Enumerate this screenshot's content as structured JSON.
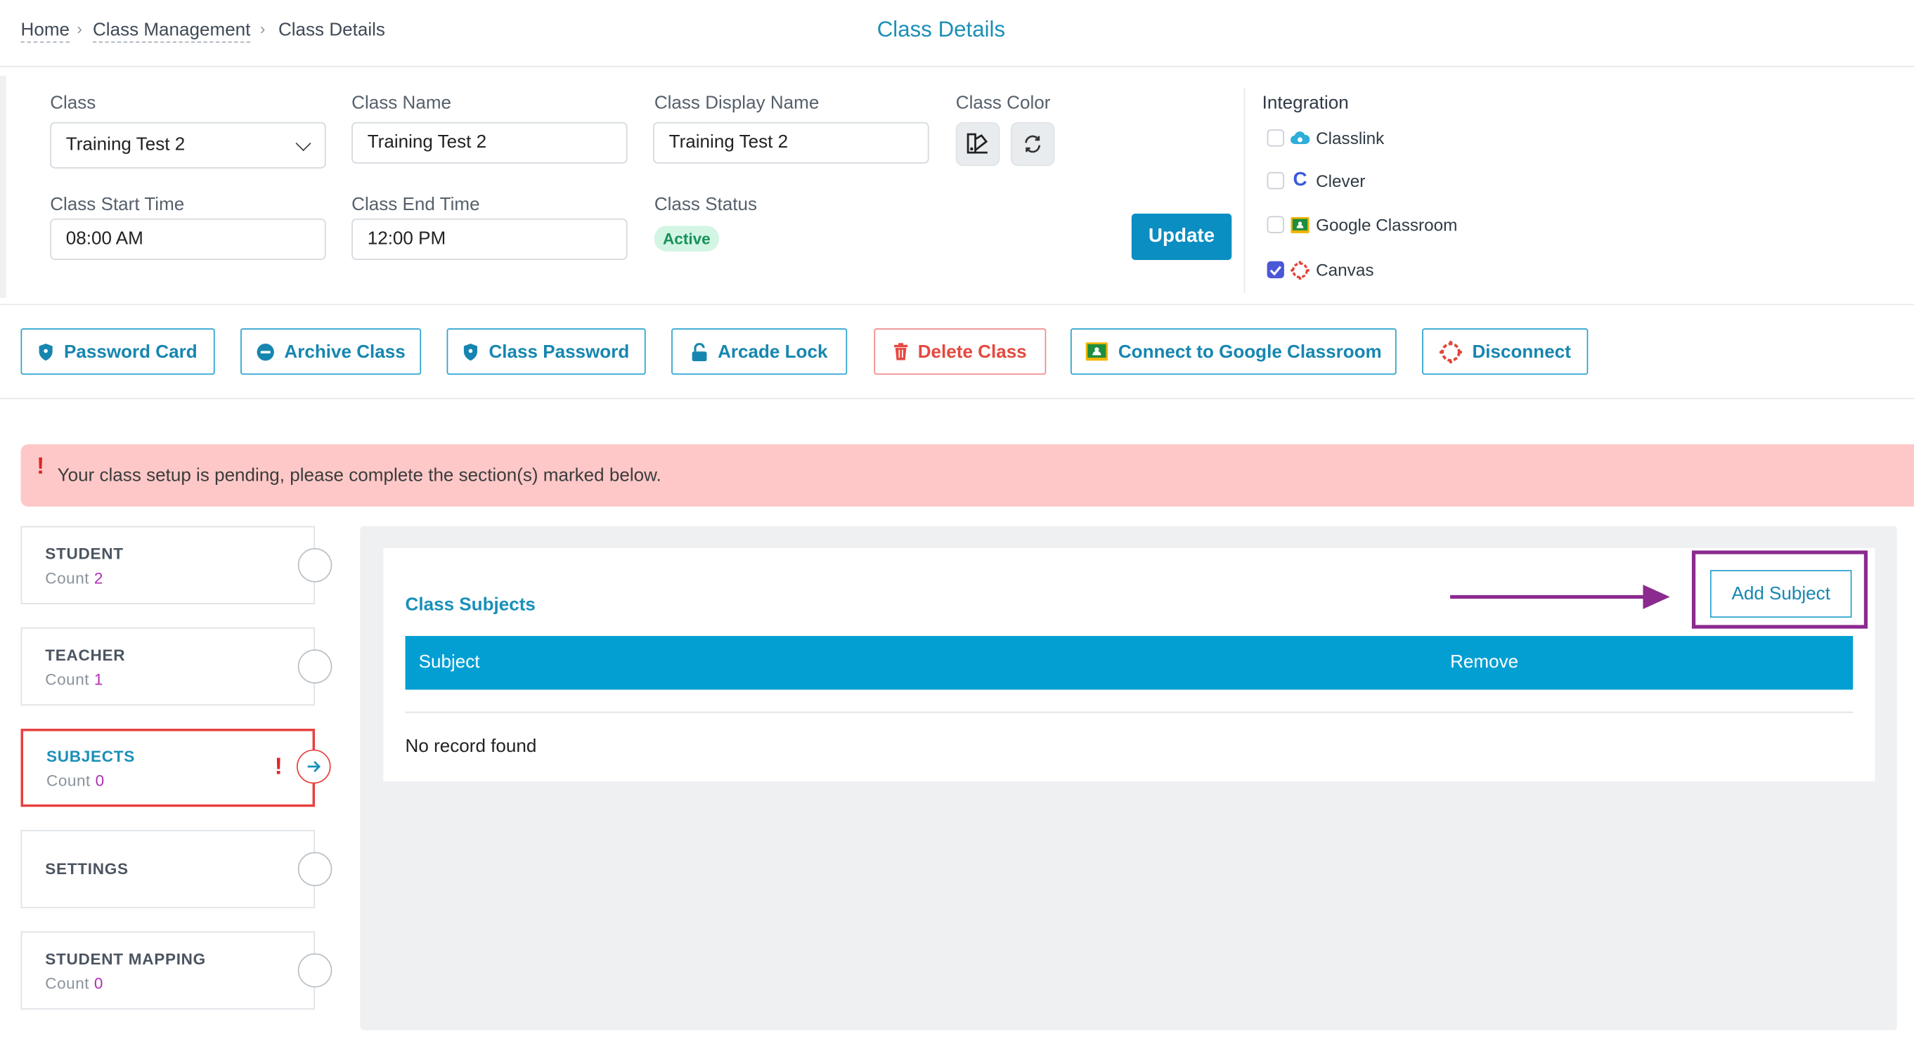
{
  "breadcrumb": {
    "home": "Home",
    "class_management": "Class Management",
    "current": "Class Details"
  },
  "page_title": "Class Details",
  "form": {
    "class_label": "Class",
    "class_value": "Training Test 2",
    "class_name_label": "Class Name",
    "class_name_value": "Training Test 2",
    "display_name_label": "Class Display Name",
    "display_name_value": "Training Test 2",
    "color_label": "Class Color",
    "start_label": "Class Start Time",
    "start_value": "08:00 AM",
    "end_label": "Class End Time",
    "end_value": "12:00 PM",
    "status_label": "Class Status",
    "status_value": "Active",
    "update_label": "Update"
  },
  "integration": {
    "title": "Integration",
    "items": [
      {
        "label": "Classlink",
        "checked": false,
        "icon": "classlink-icon"
      },
      {
        "label": "Clever",
        "checked": false,
        "icon": "clever-icon"
      },
      {
        "label": "Google Classroom",
        "checked": false,
        "icon": "google-classroom-icon"
      },
      {
        "label": "Canvas",
        "checked": true,
        "icon": "canvas-icon"
      }
    ]
  },
  "actions": {
    "password_card": "Password Card",
    "archive_class": "Archive Class",
    "class_password": "Class Password",
    "arcade_lock": "Arcade Lock",
    "delete_class": "Delete Class",
    "connect_google": "Connect to Google Classroom",
    "disconnect": "Disconnect"
  },
  "alert": {
    "text": "Your class setup is pending, please complete the section(s) marked below."
  },
  "sections": [
    {
      "title": "STUDENT",
      "count_label": "Count",
      "count": "2"
    },
    {
      "title": "TEACHER",
      "count_label": "Count",
      "count": "1"
    },
    {
      "title": "SUBJECTS",
      "count_label": "Count",
      "count": "0"
    },
    {
      "title": "SETTINGS"
    },
    {
      "title": "STUDENT MAPPING",
      "count_label": "Count",
      "count": "0"
    }
  ],
  "subjects_panel": {
    "title": "Class Subjects",
    "add_label": "Add Subject",
    "col_subject": "Subject",
    "col_remove": "Remove",
    "empty": "No record found"
  },
  "colors": {
    "accent": "#039fd3",
    "danger": "#e5483f",
    "highlight": "#8b2a8f",
    "alert_bg": "#fec8c8"
  }
}
